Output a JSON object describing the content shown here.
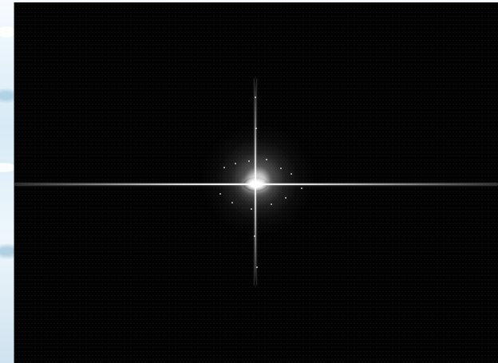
{
  "screen": {
    "background_color": "#dfeef8",
    "window_background_color": "#020202",
    "spectrum_color": "#ffffff"
  }
}
